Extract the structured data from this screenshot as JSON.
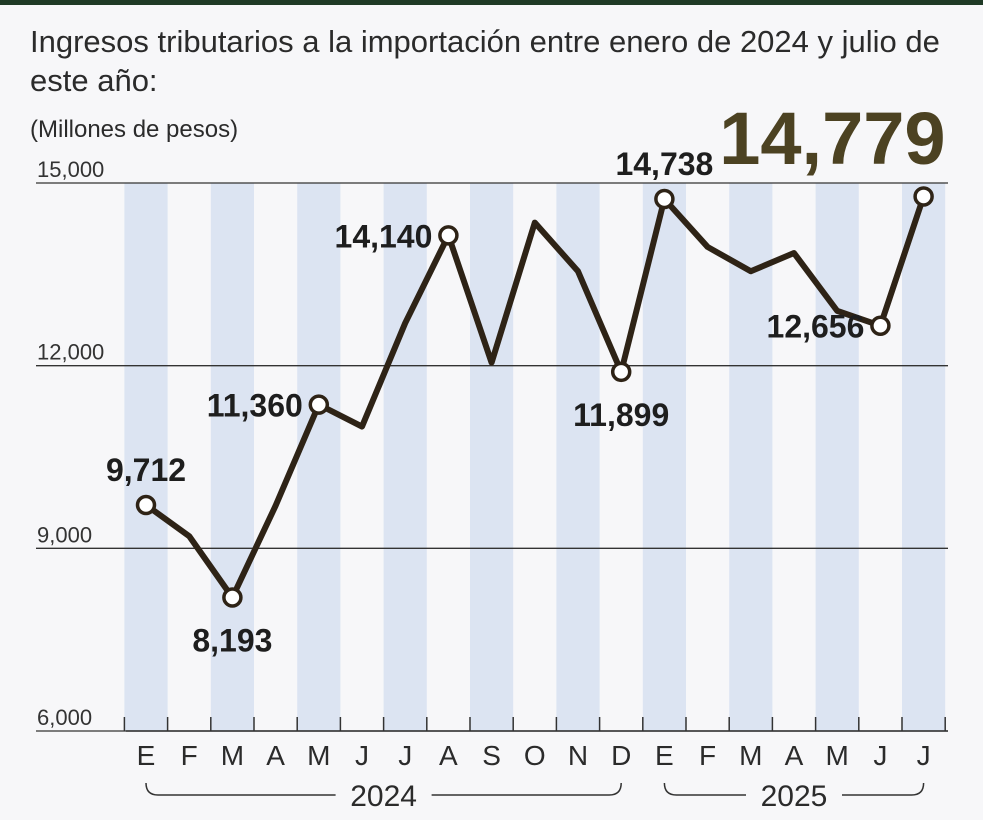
{
  "chart_data": {
    "type": "line",
    "title": "Ingresos tributarios a la importación entre enero de 2024 y julio de este año:",
    "ylabel": "(Millones de pesos)",
    "ylim": [
      6000,
      15000
    ],
    "yticks": [
      "15,000",
      "12,000",
      "9,000",
      "6,000"
    ],
    "ytick_values": [
      15000,
      12000,
      9000,
      6000
    ],
    "categories": [
      "E",
      "F",
      "M",
      "A",
      "M",
      "J",
      "J",
      "A",
      "S",
      "O",
      "N",
      "D",
      "E",
      "F",
      "M",
      "A",
      "M",
      "J",
      "J"
    ],
    "groups": [
      {
        "name": "2024",
        "start": 0,
        "end": 11
      },
      {
        "name": "2025",
        "start": 12,
        "end": 18
      }
    ],
    "series": [
      {
        "name": "Ingresos tributarios a la importación",
        "values": [
          9712,
          9200,
          8193,
          9700,
          11360,
          11000,
          12700,
          14140,
          12050,
          14350,
          13550,
          11899,
          14738,
          13950,
          13550,
          13850,
          12900,
          12656,
          14779
        ]
      }
    ],
    "labeled_points": [
      {
        "index": 0,
        "text": "9,712",
        "pos": "above"
      },
      {
        "index": 2,
        "text": "8,193",
        "pos": "below"
      },
      {
        "index": 4,
        "text": "11,360",
        "pos": "left"
      },
      {
        "index": 7,
        "text": "14,140",
        "pos": "left"
      },
      {
        "index": 11,
        "text": "11,899",
        "pos": "below"
      },
      {
        "index": 12,
        "text": "14,738",
        "pos": "above"
      },
      {
        "index": 17,
        "text": "12,656",
        "pos": "left"
      }
    ],
    "highlight": {
      "index": 18,
      "text": "14,779"
    },
    "colors": {
      "line": "#2e2316",
      "stripe": "#dce4f2",
      "highlight": "#4c4222",
      "grid": "#333333"
    }
  }
}
